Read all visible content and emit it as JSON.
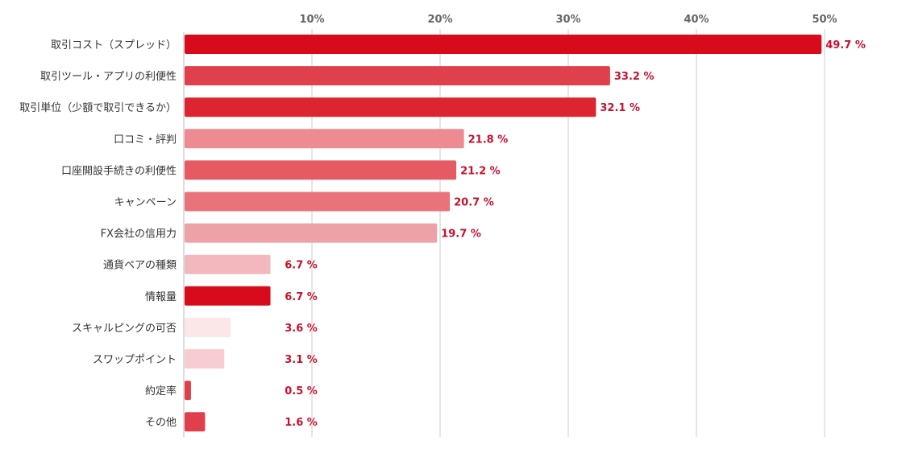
{
  "chart_data": {
    "type": "bar",
    "orientation": "horizontal",
    "categories": [
      "取引コスト（スプレッド）",
      "取引ツール・アプリの利便性",
      "取引単位（少額で取引できるか）",
      "口コミ・評判",
      "口座開設手続きの利便性",
      "キャンペーン",
      "FX会社の信用力",
      "通貨ペアの種類",
      "情報量",
      "スキャルピングの可否",
      "スワップポイント",
      "約定率",
      "その他"
    ],
    "values": [
      49.7,
      33.2,
      32.1,
      21.8,
      21.2,
      20.7,
      19.7,
      6.7,
      6.7,
      3.6,
      3.1,
      0.5,
      1.6
    ],
    "value_labels": [
      "49.7 %",
      "33.2 %",
      "32.1 %",
      "21.8 %",
      "21.2 %",
      "20.7 %",
      "19.7 %",
      "6.7 %",
      "6.7 %",
      "3.6 %",
      "3.1 %",
      "0.5 %",
      "1.6 %"
    ],
    "bar_colors": [
      "#d80b1c",
      "#e0404b",
      "#dc2530",
      "#ee8a92",
      "#e65a63",
      "#e9737b",
      "#efa1a8",
      "#f3b8bd",
      "#d80b1c",
      "#fbe6e8",
      "#f7cdd1",
      "#e0404b",
      "#e0404b"
    ],
    "value_label_color": "#c8102e",
    "x_ticks": [
      "10%",
      "20%",
      "30%",
      "40%",
      "50%"
    ],
    "x_tick_values": [
      10,
      20,
      30,
      40,
      50
    ],
    "xlim": [
      0,
      50
    ],
    "x_axis_position": "top",
    "grid": true,
    "title": "",
    "xlabel": "",
    "ylabel": ""
  }
}
